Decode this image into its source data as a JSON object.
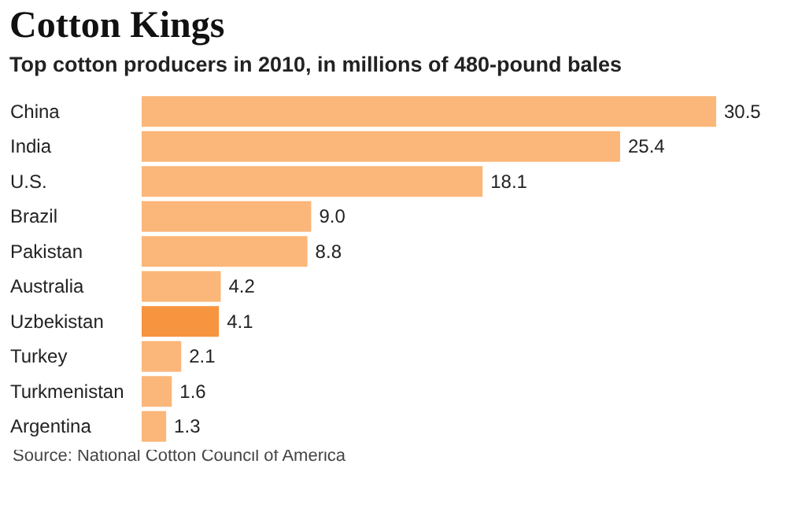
{
  "chart_data": {
    "type": "bar",
    "orientation": "horizontal",
    "title": "Cotton Kings",
    "subtitle": "Top cotton producers in 2010, in millions of 480-pound bales",
    "categories": [
      "China",
      "India",
      "U.S.",
      "Brazil",
      "Pakistan",
      "Australia",
      "Uzbekistan",
      "Turkey",
      "Turkmenistan",
      "Argentina"
    ],
    "values": [
      30.5,
      25.4,
      18.1,
      9.0,
      8.8,
      4.2,
      4.1,
      2.1,
      1.6,
      1.3
    ],
    "value_labels": [
      "30.5",
      "25.4",
      "18.1",
      "9.0",
      "8.8",
      "4.2",
      "4.1",
      "2.1",
      "1.6",
      "1.3"
    ],
    "colors": [
      "#fbb679",
      "#fbb679",
      "#fbb679",
      "#fbb679",
      "#fbb679",
      "#fbb679",
      "#f7943f",
      "#fbb679",
      "#fbb679",
      "#fbb679"
    ],
    "annotations": [
      "Source: National Cotton Council of America"
    ]
  }
}
